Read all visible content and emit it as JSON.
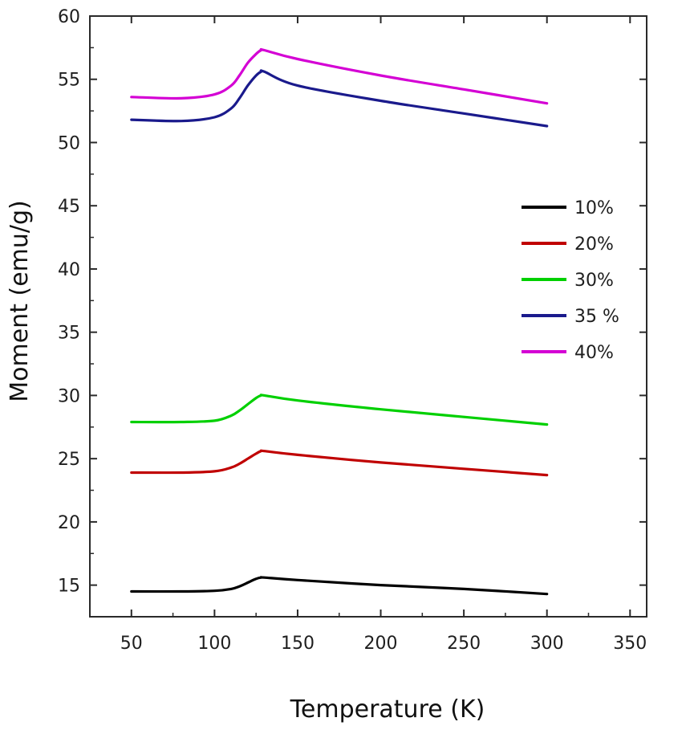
{
  "chart_data": {
    "type": "line",
    "title": "",
    "xlabel": "Temperature (K)",
    "ylabel": "Moment (emu/g)",
    "xlim": [
      25,
      360
    ],
    "ylim": [
      12.5,
      60
    ],
    "xticks": [
      50,
      100,
      150,
      200,
      250,
      300,
      350
    ],
    "yticks": [
      15,
      20,
      25,
      30,
      35,
      40,
      45,
      50,
      55,
      60
    ],
    "grid": false,
    "legend_position": "center-right",
    "series": [
      {
        "name": "10%",
        "color": "#000000",
        "x": [
          50,
          80,
          100,
          110,
          115,
          120,
          125,
          128,
          130,
          150,
          200,
          250,
          300
        ],
        "y": [
          14.5,
          14.5,
          14.55,
          14.7,
          14.9,
          15.2,
          15.5,
          15.6,
          15.6,
          15.4,
          15.0,
          14.7,
          14.3
        ]
      },
      {
        "name": "20%",
        "color": "#c00000",
        "x": [
          50,
          80,
          100,
          110,
          115,
          120,
          125,
          128,
          130,
          150,
          200,
          250,
          300
        ],
        "y": [
          23.9,
          23.9,
          24.0,
          24.3,
          24.6,
          25.0,
          25.4,
          25.6,
          25.6,
          25.3,
          24.7,
          24.2,
          23.7
        ]
      },
      {
        "name": "30%",
        "color": "#00d000",
        "x": [
          50,
          80,
          100,
          110,
          115,
          120,
          125,
          128,
          130,
          150,
          200,
          250,
          300
        ],
        "y": [
          27.9,
          27.9,
          28.0,
          28.4,
          28.8,
          29.3,
          29.8,
          30.0,
          30.0,
          29.6,
          28.9,
          28.3,
          27.7
        ]
      },
      {
        "name": "35 %",
        "color": "#1a1a8c",
        "x": [
          50,
          80,
          100,
          110,
          115,
          120,
          125,
          128,
          130,
          150,
          200,
          250,
          300
        ],
        "y": [
          51.8,
          51.7,
          52.0,
          52.7,
          53.5,
          54.5,
          55.3,
          55.6,
          55.6,
          54.5,
          53.3,
          52.3,
          51.3
        ]
      },
      {
        "name": "40%",
        "color": "#d400d4",
        "x": [
          50,
          80,
          100,
          110,
          115,
          120,
          125,
          128,
          130,
          150,
          200,
          250,
          300
        ],
        "y": [
          53.6,
          53.5,
          53.8,
          54.5,
          55.3,
          56.3,
          57.0,
          57.3,
          57.3,
          56.6,
          55.3,
          54.2,
          53.1
        ]
      }
    ]
  }
}
